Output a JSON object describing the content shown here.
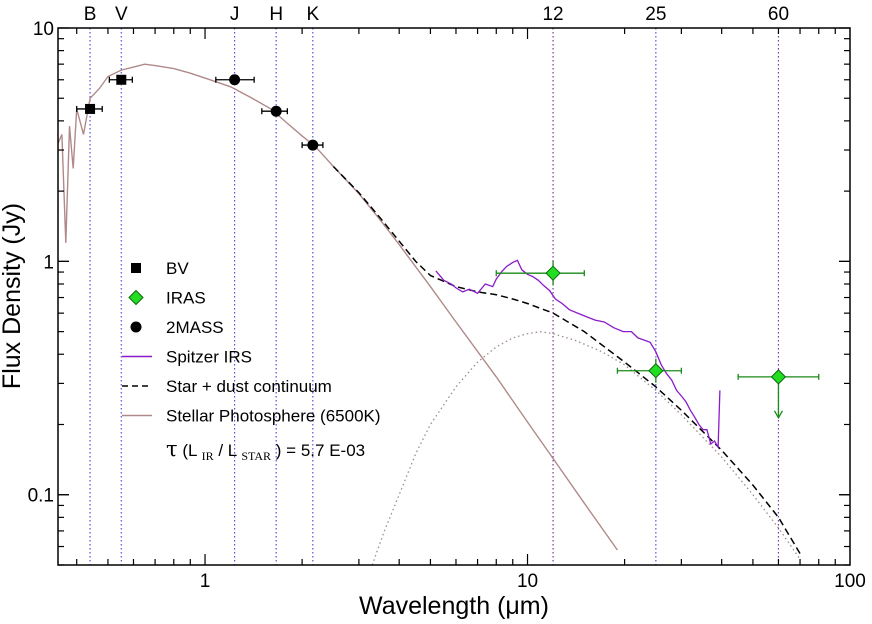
{
  "chart_data": {
    "type": "scatter",
    "xlabel": "Wavelength (μm)",
    "ylabel": "Flux Density (Jy)",
    "x_scale": "log",
    "y_scale": "log",
    "xlim": [
      0.35,
      100
    ],
    "ylim": [
      0.05,
      10
    ],
    "x_ticks": [
      {
        "v": 1,
        "label": "1"
      },
      {
        "v": 10,
        "label": "10"
      },
      {
        "v": 100,
        "label": "100"
      }
    ],
    "y_ticks": [
      {
        "v": 0.1,
        "label": "0.1"
      },
      {
        "v": 1,
        "label": "1"
      },
      {
        "v": 10,
        "label": "10"
      }
    ],
    "bands": [
      {
        "label": "B",
        "x": 0.44
      },
      {
        "label": "V",
        "x": 0.55
      },
      {
        "label": "J",
        "x": 1.235
      },
      {
        "label": "H",
        "x": 1.662
      },
      {
        "label": "K",
        "x": 2.159
      },
      {
        "label": "12",
        "x": 12
      },
      {
        "label": "25",
        "x": 25
      },
      {
        "label": "60",
        "x": 60
      }
    ],
    "photometry": {
      "BV": [
        {
          "x": 0.44,
          "y": 4.5,
          "xerr": [
            0.4,
            0.48
          ]
        },
        {
          "x": 0.55,
          "y": 6.0,
          "xerr": [
            0.505,
            0.595
          ]
        }
      ],
      "2MASS": [
        {
          "x": 1.235,
          "y": 6.0,
          "xerr": [
            1.08,
            1.42
          ]
        },
        {
          "x": 1.662,
          "y": 4.4,
          "xerr": [
            1.5,
            1.8
          ]
        },
        {
          "x": 2.159,
          "y": 3.15,
          "xerr": [
            2.0,
            2.32
          ]
        }
      ],
      "IRAS": [
        {
          "x": 12,
          "y": 0.89,
          "xerr": [
            8.0,
            15.0
          ]
        },
        {
          "x": 25,
          "y": 0.34,
          "xerr": [
            19.0,
            30.0
          ]
        },
        {
          "x": 60,
          "y": 0.32,
          "xerr": [
            45.0,
            80.0
          ],
          "upper_limit": true
        }
      ]
    },
    "series": [
      {
        "name": "Stellar Photosphere (6500K)",
        "kind": "photosphere",
        "x": [
          0.35,
          0.36,
          0.37,
          0.38,
          0.39,
          0.4,
          0.42,
          0.44,
          0.47,
          0.5,
          0.55,
          0.6,
          0.65,
          0.7,
          0.8,
          0.9,
          1.0,
          1.2,
          1.4,
          1.6,
          1.8,
          2.0,
          2.2,
          2.5,
          3.0,
          3.5,
          4.0,
          5,
          6,
          8,
          10,
          12,
          15,
          19
        ],
        "y": [
          3.2,
          3.5,
          1.2,
          3.8,
          2.5,
          4.5,
          3.5,
          5.0,
          5.5,
          6.2,
          6.6,
          6.8,
          7.0,
          6.9,
          6.7,
          6.4,
          6.1,
          5.6,
          5.0,
          4.5,
          3.9,
          3.45,
          3.1,
          2.55,
          1.95,
          1.5,
          1.18,
          0.78,
          0.55,
          0.32,
          0.205,
          0.143,
          0.092,
          0.058
        ]
      },
      {
        "name": "Star + dust continuum",
        "kind": "total",
        "x": [
          2.5,
          3.0,
          3.5,
          4.0,
          4.5,
          5,
          6,
          7,
          8,
          9,
          10,
          12,
          15,
          20,
          25,
          30,
          40,
          50,
          60,
          70
        ],
        "y": [
          2.55,
          1.97,
          1.53,
          1.22,
          1.0,
          0.87,
          0.78,
          0.74,
          0.72,
          0.69,
          0.66,
          0.6,
          0.5,
          0.37,
          0.29,
          0.23,
          0.155,
          0.11,
          0.08,
          0.056
        ]
      },
      {
        "name": "dust",
        "kind": "dust",
        "x": [
          3.3,
          3.6,
          4,
          4.5,
          5,
          6,
          7,
          8,
          9,
          10,
          11,
          12,
          14,
          17,
          20,
          25,
          30,
          40,
          50,
          60,
          70
        ],
        "y": [
          0.05,
          0.07,
          0.1,
          0.15,
          0.2,
          0.29,
          0.37,
          0.43,
          0.47,
          0.49,
          0.5,
          0.49,
          0.46,
          0.41,
          0.36,
          0.28,
          0.22,
          0.145,
          0.1,
          0.072,
          0.053
        ]
      },
      {
        "name": "Spitzer IRS",
        "kind": "irs",
        "x": [
          5.2,
          5.5,
          5.8,
          6.0,
          6.3,
          6.6,
          7.0,
          7.4,
          7.8,
          8.0,
          8.3,
          8.6,
          9.0,
          9.3,
          9.6,
          10.0,
          10.4,
          10.8,
          11.2,
          11.7,
          12.2,
          12.8,
          13.5,
          14.3,
          15.2,
          16.2,
          17.3,
          18.5,
          19.8,
          21.0,
          22.0,
          23.0,
          24.0,
          25.0,
          26.0,
          27.0,
          28.0,
          29.0,
          30.0,
          31.0,
          32.0,
          33.0,
          34.0,
          35.0,
          36.0,
          37.0,
          38.0,
          39.0,
          39.5
        ],
        "y": [
          0.91,
          0.83,
          0.8,
          0.77,
          0.74,
          0.76,
          0.73,
          0.8,
          0.78,
          0.84,
          0.9,
          0.95,
          0.99,
          1.01,
          0.92,
          0.88,
          0.86,
          0.83,
          0.79,
          0.75,
          0.69,
          0.66,
          0.62,
          0.6,
          0.58,
          0.56,
          0.55,
          0.52,
          0.5,
          0.5,
          0.47,
          0.46,
          0.45,
          0.41,
          0.36,
          0.33,
          0.31,
          0.28,
          0.265,
          0.25,
          0.23,
          0.215,
          0.2,
          0.19,
          0.19,
          0.165,
          0.17,
          0.16,
          0.28
        ]
      }
    ],
    "colors": {
      "photosphere": "#b08a8a",
      "total": "#000000",
      "dust": "#a08a8a",
      "irs": "#8a1cc8",
      "iras": "#22dd22",
      "iras_err": "#1a8a1a",
      "band_line": "#5a50e0",
      "band_line_alt": "#7a3aa0"
    },
    "legend": [
      {
        "kind": "square",
        "label": "BV"
      },
      {
        "kind": "diamond",
        "label": "IRAS"
      },
      {
        "kind": "circle",
        "label": "2MASS"
      },
      {
        "kind": "irs",
        "label": "Spitzer IRS"
      },
      {
        "kind": "total",
        "label": "Star + dust continuum"
      },
      {
        "kind": "photosphere",
        "label": "Stellar Photosphere (6500K)"
      }
    ],
    "annotation": {
      "tau": "τ",
      "open": " (L",
      "sub1": "IR",
      "mid": "/ L",
      "sub2": "STAR",
      "close": ") = 5.7 E-03"
    }
  }
}
